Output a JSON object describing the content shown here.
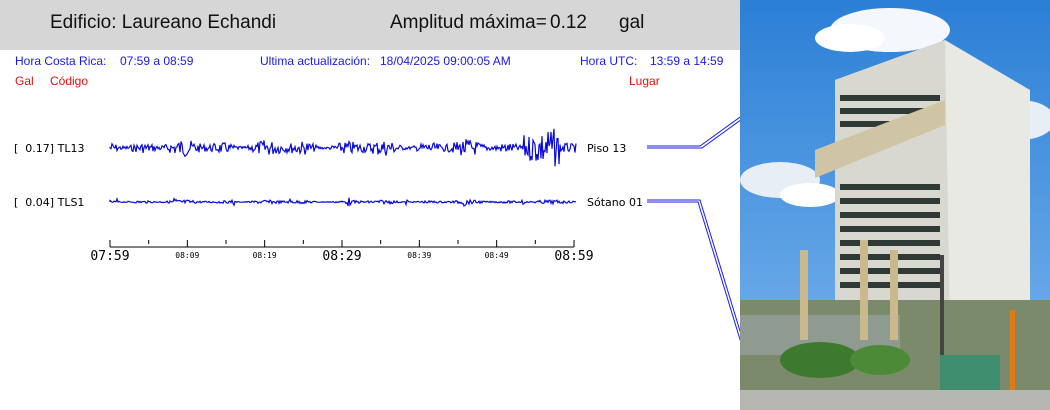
{
  "header": {
    "building": "Edificio: Laureano Echandi",
    "amp_label": "Amplitud máxima=",
    "amp_value": "0.12",
    "amp_unit": "gal"
  },
  "info": {
    "cr_label": "Hora Costa Rica:",
    "cr_range": "07:59 a 08:59",
    "update_label": "Ultima actualización:",
    "update_value": "18/04/2025 09:00:05 AM",
    "utc_label": "Hora UTC:",
    "utc_range": "13:59 a 14:59"
  },
  "columns": {
    "gal": "Gal",
    "code": "Código",
    "place": "Lugar"
  },
  "traces": [
    {
      "gal": "0.17",
      "code": "TL13",
      "place": "Piso 13",
      "max_gal": 0.17
    },
    {
      "gal": "0.04",
      "code": "TLS1",
      "place": "Sótano 01",
      "max_gal": 0.04
    }
  ],
  "time_axis": {
    "ticks": [
      "07:59",
      "08:09",
      "08:19",
      "08:29",
      "08:39",
      "08:49",
      "08:59"
    ],
    "major": [
      true,
      false,
      false,
      true,
      false,
      false,
      true
    ]
  },
  "colors": {
    "trace": "#0a0ad8",
    "info": "#1a1ae6",
    "columns": "#e01010",
    "header_bg": "#d6d6d6"
  }
}
